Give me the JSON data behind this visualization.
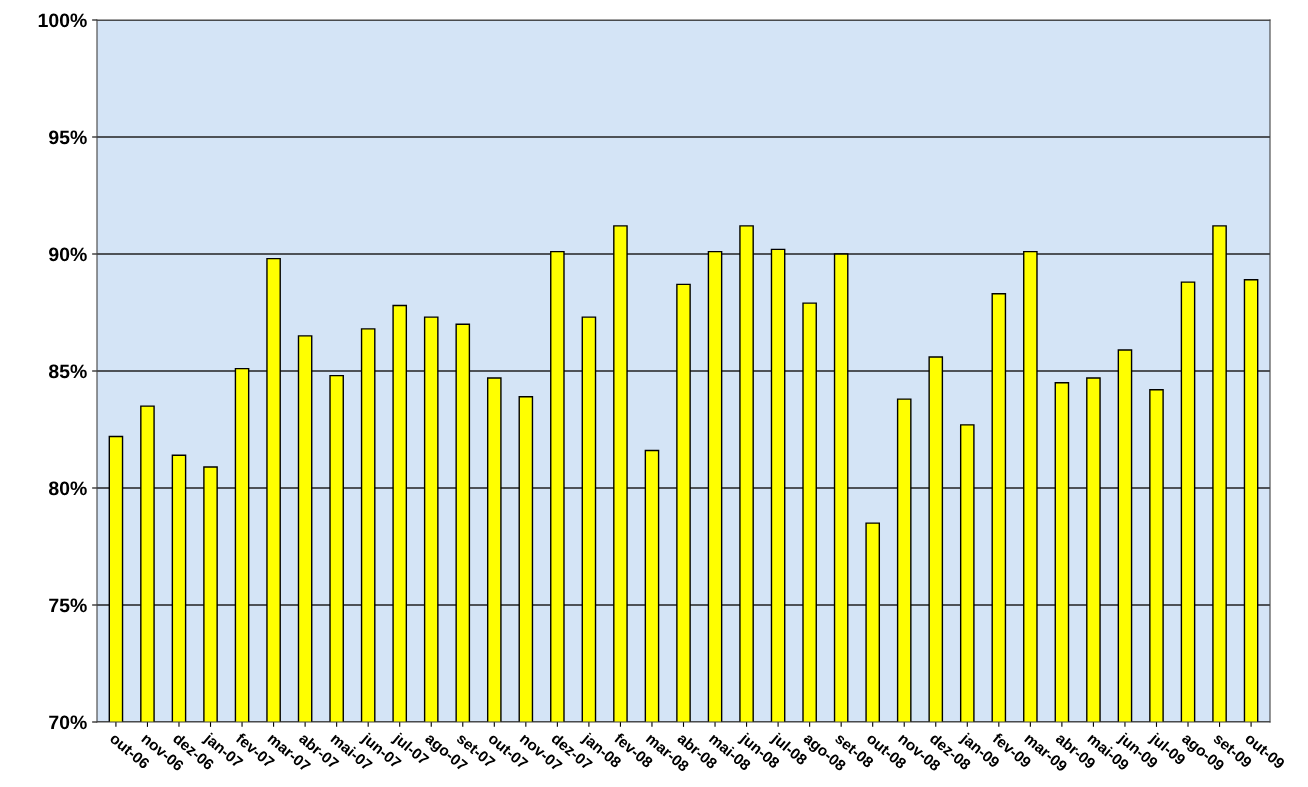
{
  "chart_data": {
    "type": "bar",
    "categories": [
      "out-06",
      "nov-06",
      "dez-06",
      "jan-07",
      "fev-07",
      "mar-07",
      "abr-07",
      "mai-07",
      "jun-07",
      "jul-07",
      "ago-07",
      "set-07",
      "out-07",
      "nov-07",
      "dez-07",
      "jan-08",
      "fev-08",
      "mar-08",
      "abr-08",
      "mai-08",
      "jun-08",
      "jul-08",
      "ago-08",
      "set-08",
      "out-08",
      "nov-08",
      "dez-08",
      "jan-09",
      "fev-09",
      "mar-09",
      "abr-09",
      "mai-09",
      "jun-09",
      "jul-09",
      "ago-09",
      "set-09",
      "out-09"
    ],
    "values": [
      82.2,
      83.5,
      81.4,
      80.9,
      85.1,
      89.8,
      86.5,
      84.8,
      86.8,
      87.8,
      87.3,
      87.0,
      84.7,
      83.9,
      90.1,
      87.3,
      91.2,
      81.6,
      88.7,
      90.1,
      91.2,
      90.2,
      87.9,
      90.0,
      78.5,
      83.8,
      85.6,
      82.7,
      88.3,
      90.1,
      84.5,
      84.7,
      85.9,
      84.2,
      88.8,
      91.2,
      88.9
    ],
    "color": "#ffff00",
    "ylim": [
      70,
      100
    ],
    "yticks": [
      {
        "value": 70,
        "label": "70%"
      },
      {
        "value": 75,
        "label": "75%"
      },
      {
        "value": 80,
        "label": "80%"
      },
      {
        "value": 85,
        "label": "85%"
      },
      {
        "value": 90,
        "label": "90%"
      },
      {
        "value": 95,
        "label": "95%"
      },
      {
        "value": 100,
        "label": "100%"
      }
    ],
    "grid": "y",
    "legend": false
  }
}
